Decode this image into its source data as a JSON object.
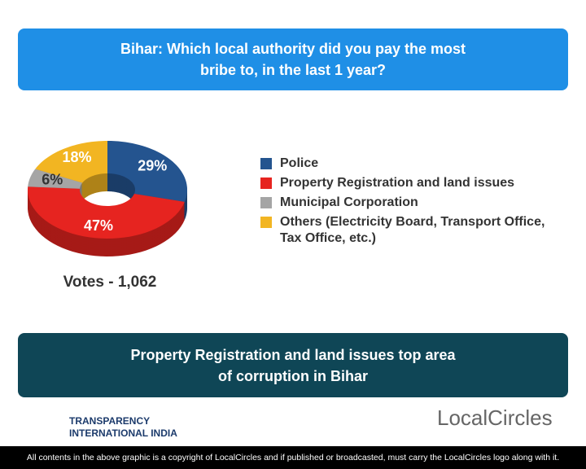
{
  "chart_data": {
    "type": "pie",
    "title": "Bihar: Which local authority did you pay the most bribe to, in the last 1 year?",
    "categories": [
      "Police",
      "Property Registration and land issues",
      "Municipal Corporation",
      "Others (Electricity Board, Transport Office, Tax Office, etc.)"
    ],
    "values": [
      29,
      47,
      6,
      18
    ],
    "value_labels": [
      "29%",
      "47%",
      "6%",
      "18%"
    ],
    "colors": [
      "#24548f",
      "#e62420",
      "#a5a5a5",
      "#f2b522"
    ],
    "donut": true,
    "votes": "Votes - 1,062"
  },
  "conclusion": "Property Registration and land issues top area of corruption in Bihar",
  "logos": {
    "left_line1": "TRANSPARENCY",
    "left_line2": "INTERNATIONAL INDIA",
    "right": "LocalCircles"
  },
  "footer": "All contents in the above graphic is a copyright of LocalCircles and if published or broadcasted, must carry the LocalCircles logo along with it."
}
